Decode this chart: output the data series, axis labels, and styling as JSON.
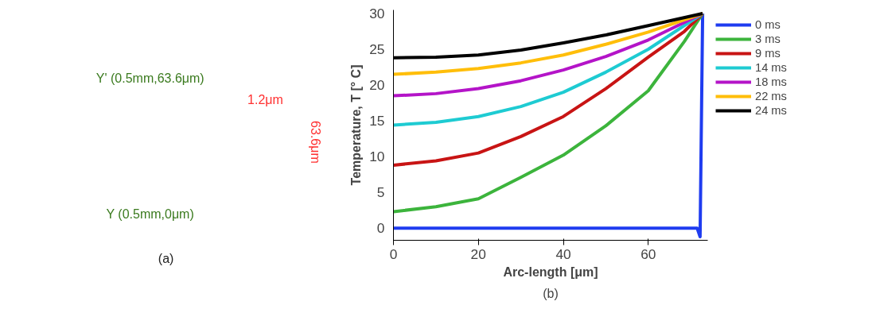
{
  "chart_data": [
    {
      "type": "other",
      "annotations": [
        "Y' (0.5mm,63.6μm)",
        "1.2μm",
        "63.6μm",
        "Y (0.5mm,0μm)",
        "(a)"
      ]
    },
    {
      "type": "line",
      "xlabel": "Arc-length [μm]",
      "ylabel": "Temperature, T [° C]",
      "annotations": [
        "(b)"
      ],
      "xlim": [
        0,
        74
      ],
      "ylim": [
        -1.7,
        30.5
      ],
      "xticks": [
        0,
        20,
        40,
        60
      ],
      "yticks": [
        0,
        5,
        10,
        15,
        20,
        25,
        30
      ],
      "grid": false,
      "legend": "right",
      "marker": "none",
      "line_style": "solid",
      "series": [
        {
          "name": "0 ms",
          "color": "#1f3cf0",
          "x": [
            0,
            71.5,
            72.2,
            72.8
          ],
          "values": [
            0,
            0,
            -1.2,
            30
          ]
        },
        {
          "name": "3 ms",
          "color": "#3cb43c",
          "x": [
            0,
            10,
            20,
            30,
            40,
            50,
            60,
            68.5,
            72.8
          ],
          "values": [
            2.3,
            3.0,
            4.1,
            7.1,
            10.2,
            14.3,
            19.2,
            26.1,
            30
          ]
        },
        {
          "name": "9 ms",
          "color": "#c81414",
          "x": [
            0,
            10,
            20,
            30,
            40,
            50,
            60,
            68.5,
            72.8
          ],
          "values": [
            8.8,
            9.4,
            10.5,
            12.8,
            15.6,
            19.5,
            23.9,
            27.5,
            30
          ]
        },
        {
          "name": "14 ms",
          "color": "#1ecbd2",
          "x": [
            0,
            10,
            20,
            30,
            40,
            50,
            60,
            72.8
          ],
          "values": [
            14.4,
            14.8,
            15.6,
            17.0,
            19.0,
            21.8,
            25.0,
            30
          ]
        },
        {
          "name": "18 ms",
          "color": "#b414c8",
          "x": [
            0,
            10,
            20,
            30,
            40,
            50,
            60,
            72.8
          ],
          "values": [
            18.5,
            18.8,
            19.5,
            20.6,
            22.1,
            24.0,
            26.3,
            30
          ]
        },
        {
          "name": "22 ms",
          "color": "#ffbe0a",
          "x": [
            0,
            10,
            20,
            30,
            40,
            50,
            60,
            72.8
          ],
          "values": [
            21.5,
            21.8,
            22.3,
            23.1,
            24.2,
            25.7,
            27.4,
            30
          ]
        },
        {
          "name": "24 ms",
          "color": "#000000",
          "x": [
            0,
            10,
            20,
            30,
            40,
            50,
            60,
            72.8
          ],
          "values": [
            23.8,
            23.9,
            24.2,
            24.9,
            25.9,
            27.0,
            28.3,
            30
          ]
        }
      ]
    }
  ]
}
